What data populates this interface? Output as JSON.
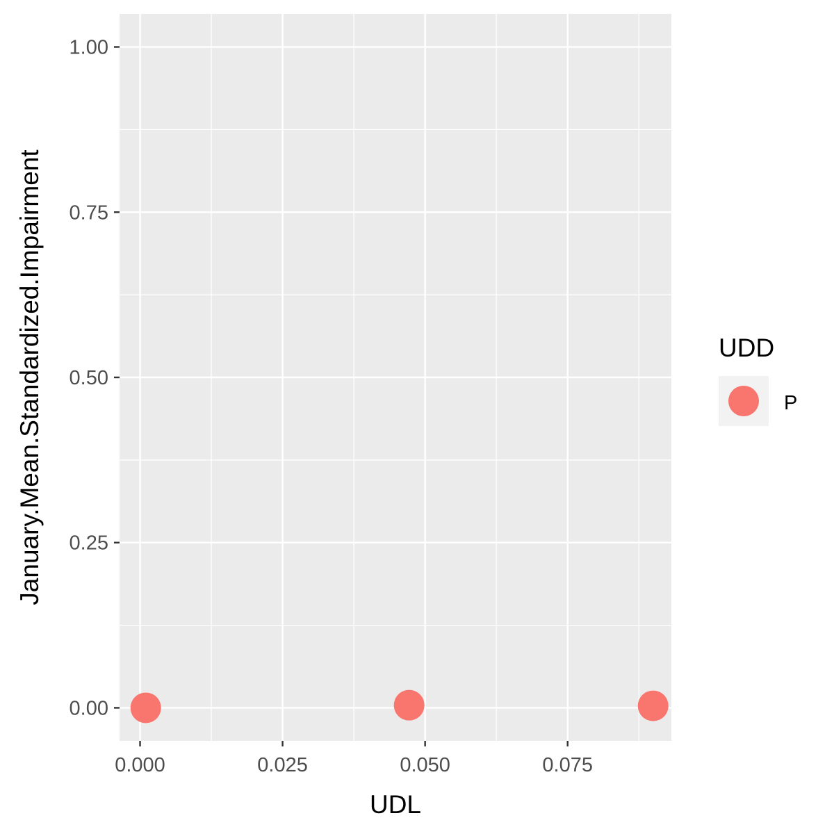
{
  "chart_data": {
    "type": "scatter",
    "xlabel": "UDL",
    "ylabel": "January.Mean.Standardized.Impairment",
    "xlim": [
      -0.0036,
      0.0932
    ],
    "ylim": [
      -0.05,
      1.05
    ],
    "x_ticks": [
      0.0,
      0.025,
      0.05,
      0.075
    ],
    "x_tick_labels": [
      "0.000",
      "0.025",
      "0.050",
      "0.075"
    ],
    "y_ticks": [
      0.0,
      0.25,
      0.5,
      0.75,
      1.0
    ],
    "y_tick_labels": [
      "0.00",
      "0.25",
      "0.50",
      "0.75",
      "1.00"
    ],
    "grid": true,
    "background": "#EBEBEB",
    "legend": {
      "title": "UDD",
      "position": "right",
      "entries": [
        {
          "label": "P",
          "color": "#F8766D"
        }
      ]
    },
    "series": [
      {
        "name": "P",
        "color": "#F8766D",
        "points": [
          {
            "x": 0.001,
            "y": 0.0
          },
          {
            "x": 0.0472,
            "y": 0.004
          },
          {
            "x": 0.09,
            "y": 0.003
          }
        ]
      }
    ]
  }
}
